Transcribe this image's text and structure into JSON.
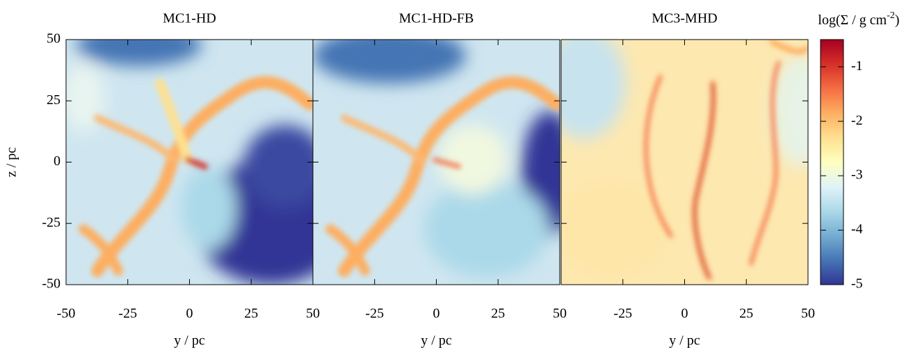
{
  "chart_data": [
    {
      "type": "image",
      "title": "MC1-HD",
      "xlabel": "y / pc",
      "ylabel": "z / pc",
      "xlim": [
        -50,
        50
      ],
      "ylim": [
        -50,
        50
      ],
      "xticks": [
        -50,
        -25,
        0,
        25,
        50
      ],
      "yticks": [
        -50,
        -25,
        0,
        25,
        50
      ]
    },
    {
      "type": "image",
      "title": "MC1-HD-FB",
      "xlabel": "y / pc",
      "xlim": [
        -50,
        50
      ],
      "ylim": [
        -50,
        50
      ],
      "xticks": [
        -25,
        0,
        25,
        50
      ]
    },
    {
      "type": "image",
      "title": "MC3-MHD",
      "xlabel": "y / pc",
      "xlim": [
        -50,
        50
      ],
      "ylim": [
        -50,
        50
      ],
      "xticks": [
        -25,
        0,
        25,
        50
      ],
      "colorbar": {
        "label": [
          "log(Σ / g cm",
          "-2",
          ")"
        ],
        "lim": [
          -5,
          -0.5
        ],
        "ticks": [
          -5,
          -4,
          -3,
          -2,
          -1
        ],
        "colors": [
          "#313695",
          "#4575b4",
          "#74add1",
          "#abd9e9",
          "#e0f3f8",
          "#ffffbf",
          "#fee090",
          "#fdae61",
          "#f46d43",
          "#d73027",
          "#a50026"
        ]
      }
    }
  ]
}
